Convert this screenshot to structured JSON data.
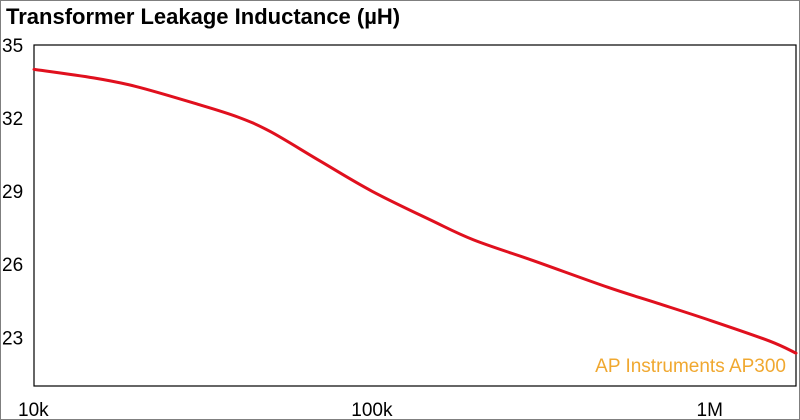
{
  "chart_data": {
    "type": "line",
    "title": "Transformer Leakage Inductance (µH)",
    "xlabel": "",
    "ylabel": "",
    "x_scale": "log",
    "xlim": [
      10000,
      1800000
    ],
    "ylim": [
      21,
      35
    ],
    "x_ticks": [
      {
        "value": 10000,
        "label": "10k"
      },
      {
        "value": 100000,
        "label": "100k"
      },
      {
        "value": 1000000,
        "label": "1M"
      }
    ],
    "y_ticks": [
      {
        "value": 35,
        "label": "35"
      },
      {
        "value": 32,
        "label": "32"
      },
      {
        "value": 29,
        "label": "29"
      },
      {
        "value": 26,
        "label": "26"
      },
      {
        "value": 23,
        "label": "23"
      }
    ],
    "grid": false,
    "series": [
      {
        "color": "#e0101e",
        "x": [
          10000,
          15000,
          20000,
          30000,
          40000,
          50000,
          70000,
          100000,
          150000,
          200000,
          300000,
          500000,
          700000,
          1000000,
          1500000,
          1800000
        ],
        "y": [
          34.0,
          33.65,
          33.3,
          32.6,
          32.05,
          31.45,
          30.25,
          29.0,
          27.8,
          27.0,
          26.15,
          25.05,
          24.4,
          23.7,
          22.85,
          22.35
        ]
      }
    ],
    "annotation": {
      "text": "AP Instruments AP300",
      "color": "#f0a830",
      "placement": "bottom-right"
    }
  }
}
